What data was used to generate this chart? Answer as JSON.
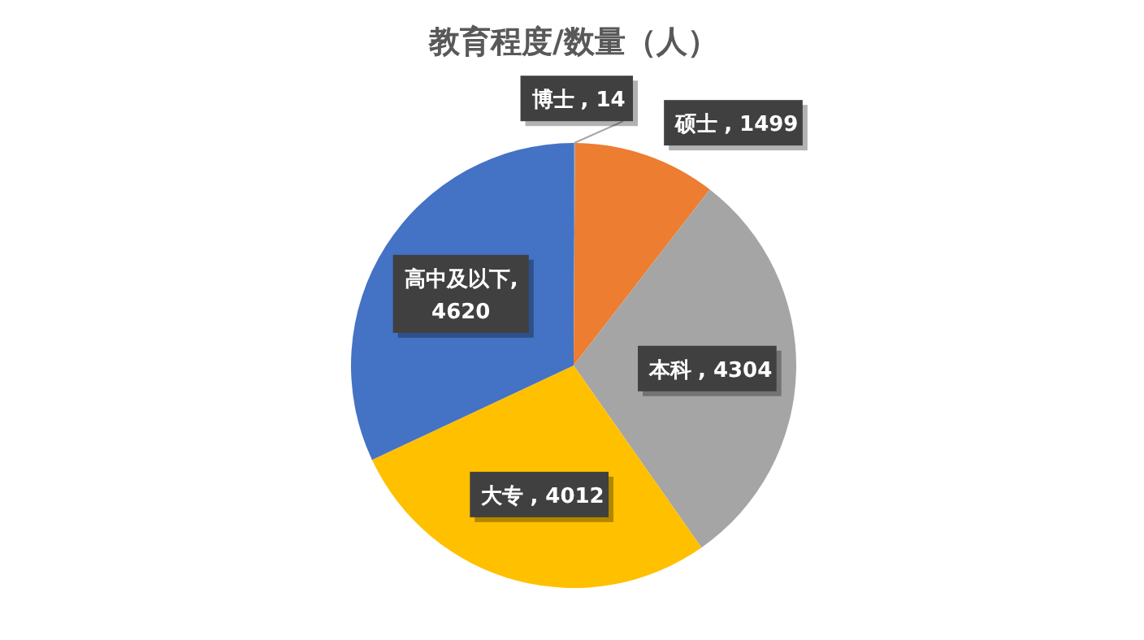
{
  "chart_data": {
    "type": "pie",
    "title": "教育程度/数量（人）",
    "categories": [
      "博士",
      "硕士",
      "本科",
      "大专",
      "高中及以下"
    ],
    "values": [
      14,
      1499,
      4304,
      4012,
      4620
    ],
    "colors": [
      "#5b9bd5",
      "#ed7d31",
      "#a5a5a5",
      "#ffc000",
      "#4472c4"
    ],
    "value_labels": [
      ", 14",
      ", 1499",
      ", 4304",
      ", 4012",
      ", 4620"
    ]
  }
}
